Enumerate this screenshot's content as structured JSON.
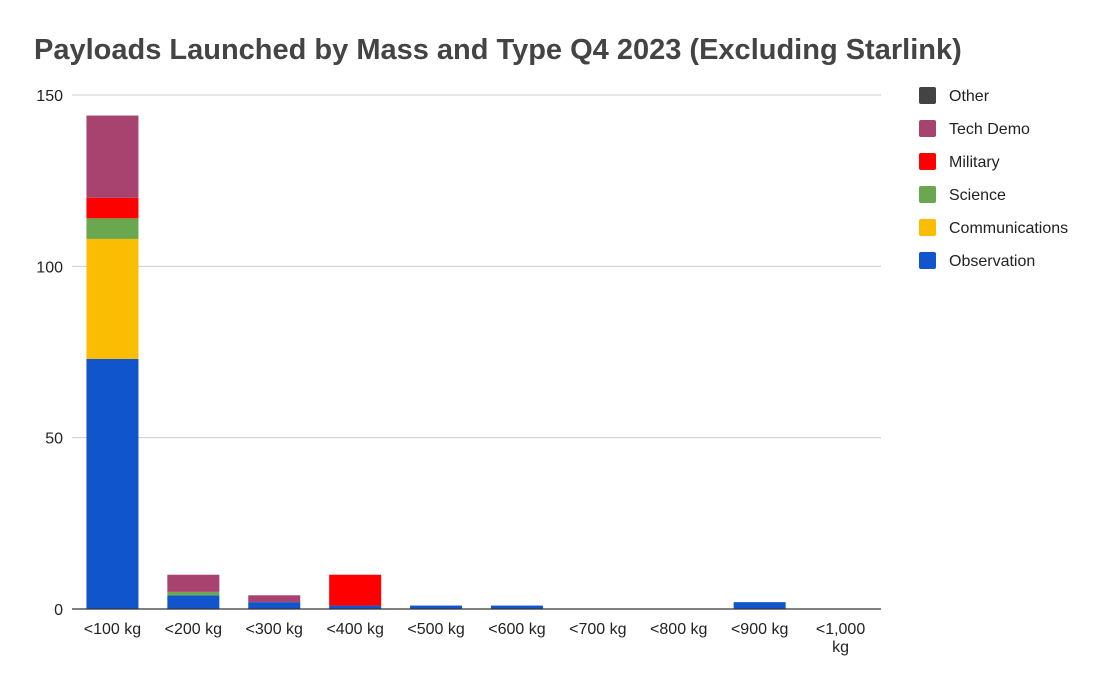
{
  "chart_data": {
    "type": "bar",
    "stacked": true,
    "title": "Payloads Launched by Mass and Type Q4 2023 (Excluding Starlink)",
    "xlabel": "",
    "ylabel": "",
    "ylim": [
      0,
      150
    ],
    "yticks": [
      "0",
      "50",
      "100",
      "150"
    ],
    "grid": true,
    "legend_position": "right",
    "categories": [
      [
        "<100 kg"
      ],
      [
        "<200 kg"
      ],
      [
        "<300 kg"
      ],
      [
        "<400 kg"
      ],
      [
        "<500 kg"
      ],
      [
        "<600 kg"
      ],
      [
        "<700 kg"
      ],
      [
        "<800 kg"
      ],
      [
        "<900 kg"
      ],
      [
        "<1,000",
        "kg"
      ]
    ],
    "series": [
      {
        "name": "Observation",
        "color": "#1155cc",
        "values": [
          73,
          4,
          2,
          1,
          1,
          1,
          0,
          0,
          2,
          0
        ]
      },
      {
        "name": "Communications",
        "color": "#fbbc04",
        "values": [
          35,
          0,
          0,
          0,
          0,
          0,
          0,
          0,
          0,
          0
        ]
      },
      {
        "name": "Science",
        "color": "#6aa84f",
        "values": [
          6,
          1,
          0,
          0,
          0,
          0,
          0,
          0,
          0,
          0
        ]
      },
      {
        "name": "Military",
        "color": "#ff0000",
        "values": [
          6,
          0,
          0,
          9,
          0,
          0,
          0,
          0,
          0,
          0
        ]
      },
      {
        "name": "Tech Demo",
        "color": "#a8426f",
        "values": [
          24,
          5,
          2,
          0,
          0,
          0,
          0,
          0,
          0,
          0
        ]
      },
      {
        "name": "Other",
        "color": "#434343",
        "values": [
          0,
          0,
          0,
          0,
          0,
          0,
          0,
          0,
          0,
          0
        ]
      }
    ]
  }
}
